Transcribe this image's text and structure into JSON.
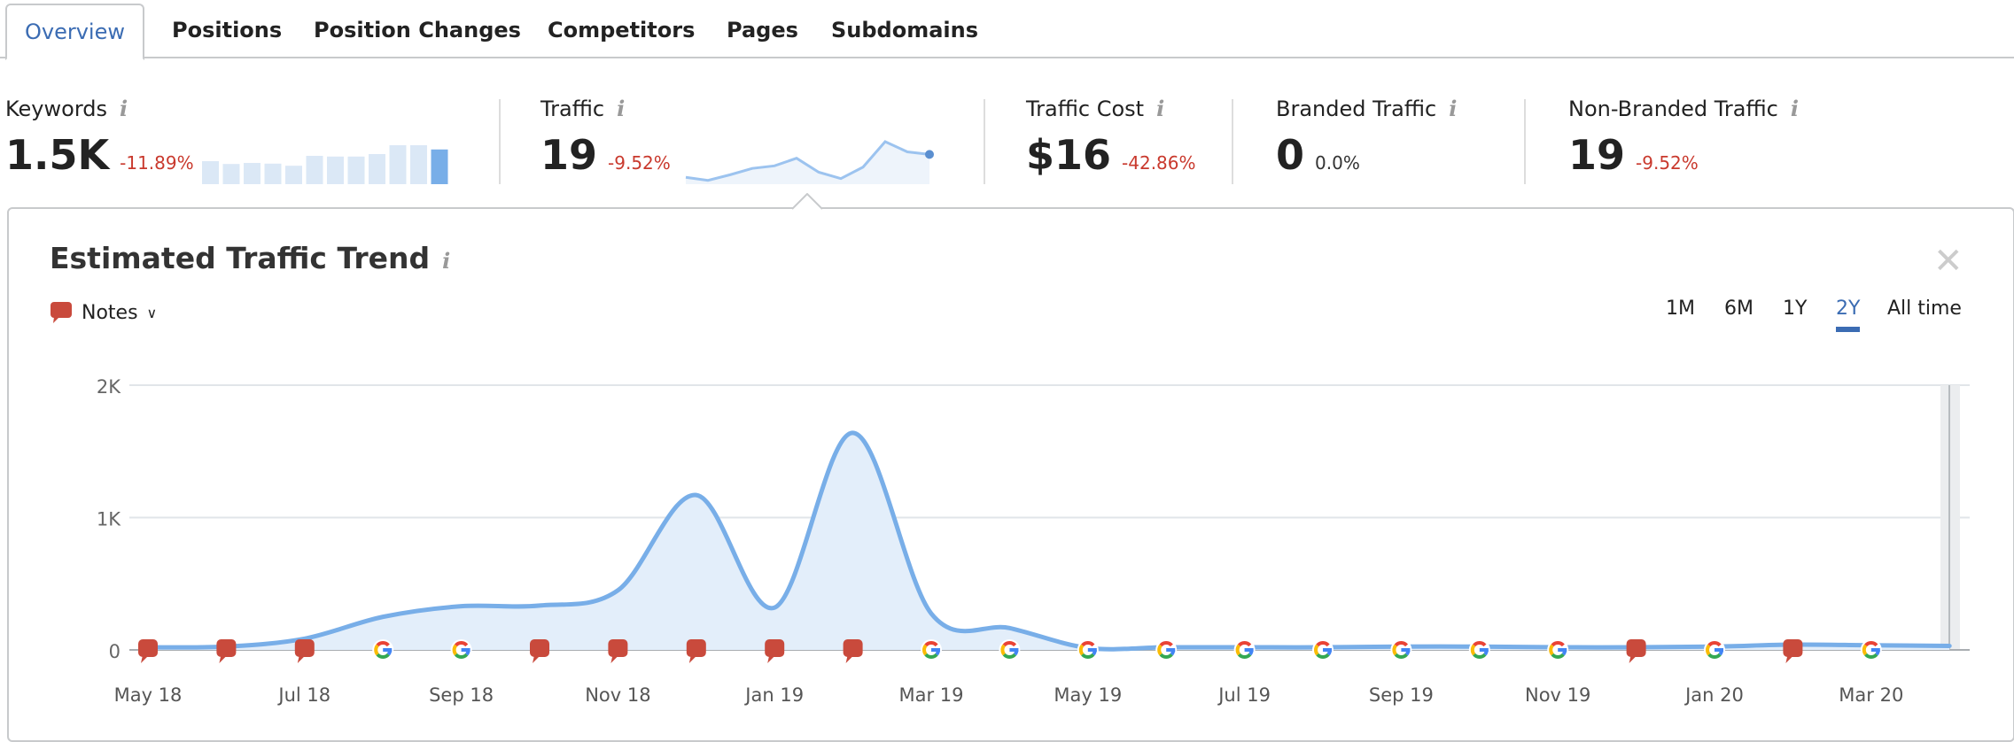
{
  "tabs": [
    "Overview",
    "Positions",
    "Position Changes",
    "Competitors",
    "Pages",
    "Subdomains"
  ],
  "metrics": [
    {
      "label": "Keywords",
      "value": "1.5K",
      "delta": "-11.89%"
    },
    {
      "label": "Traffic",
      "value": "19",
      "delta": "-9.52%"
    },
    {
      "label": "Traffic Cost",
      "value": "$16",
      "delta": "-42.86%"
    },
    {
      "label": "Branded Traffic",
      "value": "0",
      "delta": "0.0%"
    },
    {
      "label": "Non-Branded Traffic",
      "value": "19",
      "delta": "-9.52%"
    }
  ],
  "info_glyph": "i",
  "keywords_sparkline": [
    65,
    57,
    60,
    58,
    52,
    80,
    78,
    78,
    85,
    110,
    110,
    98
  ],
  "traffic_sparkline": [
    20,
    8,
    30,
    55,
    65,
    95,
    40,
    15,
    60,
    160,
    120,
    110
  ],
  "panel": {
    "title": "Estimated Traffic Trend",
    "notes_label": "Notes",
    "close": "✕",
    "ranges": [
      "1M",
      "6M",
      "1Y",
      "2Y",
      "All time"
    ],
    "active_range": "2Y"
  },
  "colors": {
    "line": "#78aee8",
    "fill": "#e3eefa",
    "note": "#c94a3c",
    "accent": "#3b6cb3",
    "negative": "#c9392d"
  },
  "chart_data": {
    "type": "area",
    "title": "Estimated Traffic Trend",
    "ylim": [
      0,
      2000
    ],
    "yticks": [
      "0",
      "1K",
      "2K"
    ],
    "xticks": [
      "May 18",
      "Jul 18",
      "Sep 18",
      "Nov 18",
      "Jan 19",
      "Mar 19",
      "May 19",
      "Jul 19",
      "Sep 19",
      "Nov 19",
      "Jan 20",
      "Mar 20"
    ],
    "months": [
      "May 18",
      "Jun 18",
      "Jul 18",
      "Aug 18",
      "Sep 18",
      "Oct 18",
      "Nov 18",
      "Dec 18",
      "Jan 19",
      "Feb 19",
      "Mar 19",
      "Apr 19",
      "May 19",
      "Jun 19",
      "Jul 19",
      "Aug 19",
      "Sep 19",
      "Oct 19",
      "Nov 19",
      "Dec 19",
      "Jan 20",
      "Feb 20",
      "Mar 20",
      "Apr 20"
    ],
    "values": [
      20,
      25,
      85,
      250,
      330,
      335,
      450,
      1170,
      320,
      1640,
      275,
      165,
      15,
      20,
      20,
      20,
      25,
      25,
      20,
      20,
      25,
      40,
      35,
      30
    ],
    "markers": [
      "note",
      "note",
      "note",
      "google",
      "google",
      "note",
      "note",
      "note",
      "note",
      "note",
      "google",
      "google",
      "google",
      "google",
      "google",
      "google",
      "google",
      "google",
      "google",
      "note",
      "google",
      "note",
      "google"
    ]
  }
}
